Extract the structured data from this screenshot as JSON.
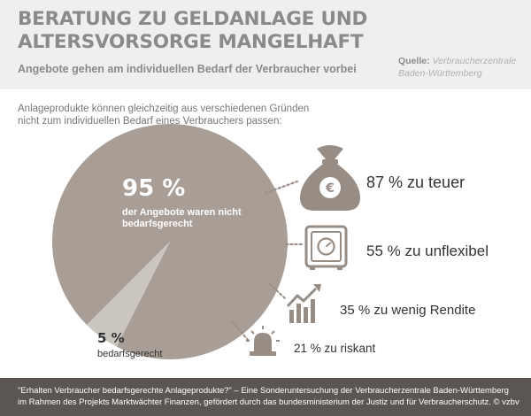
{
  "header": {
    "title_line1": "BERATUNG ZU GELDANLAGE UND",
    "title_line2": "ALTERSVORSORGE MANGELHAFT",
    "subtitle": "Angebote gehen am individuellen Bedarf der Verbraucher vorbei",
    "source_label": "Quelle:",
    "source_line1": "Verbraucherzentrale",
    "source_line2": "Baden-Württemberg"
  },
  "intro": {
    "line1": "Anlageprodukte können gleichzeitig aus verschiedenen Gründen",
    "line2": "nicht zum individuellen Bedarf eines Verbrauchers passen:"
  },
  "chart_data": {
    "type": "pie",
    "slices": [
      {
        "pct_label": "95 %",
        "value": 95,
        "label": "der Angebote waren nicht bedarfsgerecht",
        "color": "#a89e96"
      },
      {
        "pct_label": "5 %",
        "value": 5,
        "label": "bedarfsgerecht",
        "color": "#cbc5c0"
      }
    ],
    "reasons": [
      {
        "label": "87 % zu teuer",
        "value": 87,
        "icon": "money-bag-icon"
      },
      {
        "label": "55 % zu unflexibel",
        "value": 55,
        "icon": "safe-icon"
      },
      {
        "label": "35 % zu wenig Rendite",
        "value": 35,
        "icon": "chart-arrow-icon"
      },
      {
        "label": "21 % zu riskant",
        "value": 21,
        "icon": "siren-icon"
      }
    ]
  },
  "colors": {
    "header_bg": "#efefef",
    "title": "#8a8a8a",
    "pie_main": "#a89e96",
    "pie_small": "#cbc5c0",
    "icon": "#978d85",
    "footer_bg": "#5b5653"
  },
  "footer": {
    "line1": "\"Erhalten Verbraucher bedarfsgerechte Anlageprodukte?\" – Eine Sonderuntersuchung der Verbraucherzentrale Baden-Württemberg",
    "line2": "im Rahmen des Projekts Marktwächter Finanzen, gefördert durch das bundesministerium der Justiz und für Verbraucherschutz. © vzbv"
  }
}
